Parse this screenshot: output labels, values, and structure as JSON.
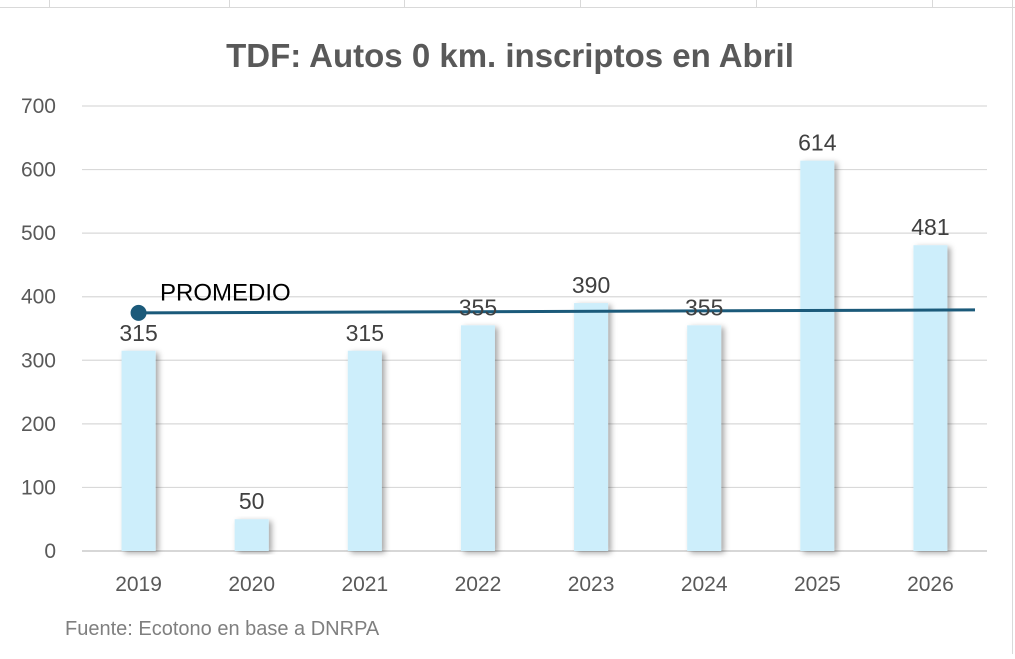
{
  "chart_data": {
    "type": "bar",
    "title": "TDF: Autos 0 km. inscriptos en Abril",
    "categories": [
      "2019",
      "2020",
      "2021",
      "2022",
      "2023",
      "2024",
      "2025",
      "2026"
    ],
    "values": [
      315,
      50,
      315,
      355,
      390,
      355,
      614,
      481
    ],
    "ylim": [
      0,
      700
    ],
    "yticks": [
      "0",
      "100",
      "200",
      "300",
      "400",
      "500",
      "600",
      "700"
    ],
    "grid": true,
    "bar_color": "#cdeefb",
    "average_line": {
      "label": "PROMEDIO",
      "value": 376.9,
      "color": "#1b5a7a"
    },
    "source": "Fuente: Ecotono en base a DNRPA"
  }
}
